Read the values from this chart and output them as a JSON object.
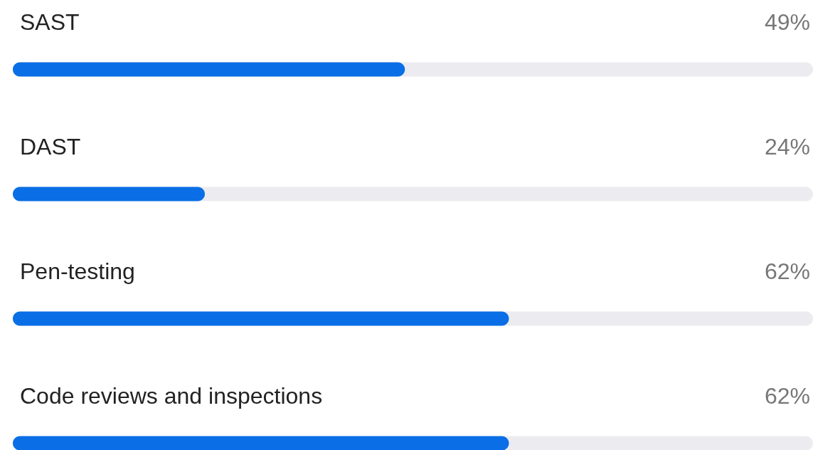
{
  "chart_data": {
    "type": "bar",
    "orientation": "horizontal",
    "categories": [
      "SAST",
      "DAST",
      "Pen-testing",
      "Code reviews and inspections"
    ],
    "values": [
      49,
      24,
      62,
      62
    ],
    "value_labels": [
      "49%",
      "24%",
      "62%",
      "62%"
    ],
    "color": "#0a6ee6",
    "xlim": [
      0,
      100
    ]
  }
}
